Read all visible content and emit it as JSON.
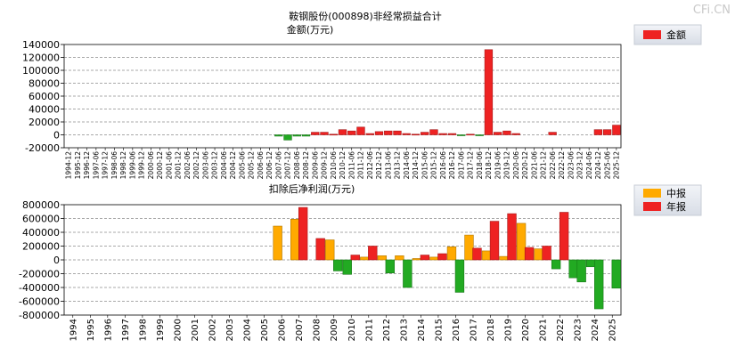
{
  "watermark": "CFi.CN",
  "chart_data": [
    {
      "type": "bar",
      "title": "鞍钢股份(000898)非经常损益合计",
      "ylabel": "金额(万元)",
      "ylim": [
        -20000,
        140000
      ],
      "yticks": [
        140000,
        120000,
        100000,
        80000,
        60000,
        40000,
        20000,
        0,
        -20000
      ],
      "grid": true,
      "legend_position": "top-right",
      "legend": [
        {
          "name": "金额",
          "color": "#ee2222"
        }
      ],
      "categories": [
        "1994-12",
        "1995-12",
        "1996-12",
        "1997-06",
        "1997-12",
        "1998-06",
        "1998-12",
        "1999-06",
        "1999-12",
        "2000-06",
        "2000-12",
        "2001-06",
        "2001-12",
        "2002-06",
        "2002-12",
        "2003-06",
        "2003-12",
        "2004-06",
        "2004-12",
        "2005-06",
        "2005-12",
        "2006-06",
        "2006-12",
        "2007-06",
        "2007-12",
        "2008-06",
        "2008-12",
        "2009-06",
        "2009-12",
        "2010-06",
        "2010-12",
        "2011-06",
        "2011-12",
        "2012-06",
        "2012-12",
        "2013-06",
        "2013-12",
        "2014-06",
        "2014-12",
        "2015-06",
        "2015-12",
        "2016-06",
        "2016-12",
        "2017-06",
        "2017-12",
        "2018-06",
        "2018-12",
        "2019-06",
        "2019-12",
        "2020-06",
        "2020-12",
        "2021-06",
        "2021-12",
        "2022-06",
        "2022-12",
        "2023-06",
        "2023-12",
        "2024-06",
        "2024-12",
        "2025-06",
        "2025-12"
      ],
      "series": [
        {
          "name": "金额",
          "values": [
            0,
            0,
            0,
            0,
            0,
            0,
            0,
            0,
            0,
            0,
            0,
            0,
            0,
            0,
            0,
            0,
            0,
            0,
            0,
            0,
            0,
            0,
            0,
            -2000,
            -8000,
            -2000,
            -2000,
            4000,
            4000,
            1000,
            8000,
            6000,
            12000,
            2000,
            5000,
            6000,
            6000,
            2000,
            1000,
            4000,
            8000,
            2000,
            2000,
            -1000,
            1000,
            -1000,
            132000,
            4000,
            6000,
            2000,
            0,
            0,
            0,
            4000,
            0,
            0,
            0,
            0,
            8000,
            8000,
            15000
          ],
          "colors": [
            "#ee2222",
            "#ee2222",
            "#ee2222",
            "#ee2222",
            "#ee2222",
            "#ee2222",
            "#ee2222",
            "#ee2222",
            "#ee2222",
            "#ee2222",
            "#ee2222",
            "#ee2222",
            "#ee2222",
            "#ee2222",
            "#ee2222",
            "#ee2222",
            "#ee2222",
            "#ee2222",
            "#ee2222",
            "#ee2222",
            "#ee2222",
            "#ee2222",
            "#ee2222",
            "#22aa22",
            "#22aa22",
            "#22aa22",
            "#22aa22",
            "#ee2222",
            "#ee2222",
            "#ee2222",
            "#ee2222",
            "#ee2222",
            "#ee2222",
            "#ee2222",
            "#ee2222",
            "#ee2222",
            "#ee2222",
            "#ee2222",
            "#ee2222",
            "#ee2222",
            "#ee2222",
            "#ee2222",
            "#ee2222",
            "#22aa22",
            "#ee2222",
            "#22aa22",
            "#ee2222",
            "#ee2222",
            "#ee2222",
            "#ee2222",
            "#ee2222",
            "#ee2222",
            "#ee2222",
            "#ee2222",
            "#ee2222",
            "#ee2222",
            "#ee2222",
            "#ee2222",
            "#ee2222",
            "#ee2222",
            "#ee2222"
          ]
        }
      ]
    },
    {
      "type": "bar",
      "title": "扣除后净利润(万元)",
      "ylim": [
        -800000,
        800000
      ],
      "yticks": [
        800000,
        600000,
        400000,
        200000,
        0,
        -200000,
        -400000,
        -600000,
        -800000
      ],
      "grid": true,
      "legend_position": "top-right",
      "legend": [
        {
          "name": "中报",
          "color": "#ffaa00"
        },
        {
          "name": "年报",
          "color": "#ee2222"
        }
      ],
      "categories": [
        "1994",
        "1995",
        "1996",
        "1997",
        "1998",
        "1999",
        "2000",
        "2001",
        "2002",
        "2003",
        "2004",
        "2005",
        "2006",
        "2007",
        "2008",
        "2009",
        "2010",
        "2011",
        "2012",
        "2013",
        "2014",
        "2015",
        "2016",
        "2017",
        "2018",
        "2019",
        "2020",
        "2021",
        "2022",
        "2023",
        "2024",
        "2025"
      ],
      "series": [
        {
          "name": "中报",
          "values": [
            null,
            null,
            null,
            null,
            null,
            null,
            null,
            null,
            null,
            null,
            null,
            null,
            490000,
            590000,
            0,
            290000,
            -210000,
            40000,
            60000,
            60000,
            20000,
            40000,
            190000,
            360000,
            130000,
            50000,
            530000,
            160000,
            -130000,
            -260000,
            -100000,
            null
          ],
          "colors": [
            null,
            null,
            null,
            null,
            null,
            null,
            null,
            null,
            null,
            null,
            null,
            null,
            "#ffaa00",
            "#ffaa00",
            "#ffaa00",
            "#ffaa00",
            "#22aa22",
            "#ffaa00",
            "#ffaa00",
            "#ffaa00",
            "#ffaa00",
            "#ffaa00",
            "#ffaa00",
            "#ffaa00",
            "#ffaa00",
            "#ffaa00",
            "#ffaa00",
            "#ffaa00",
            "#22aa22",
            "#22aa22",
            "#22aa22",
            null
          ]
        },
        {
          "name": "年报",
          "values": [
            null,
            null,
            null,
            null,
            null,
            null,
            null,
            null,
            null,
            null,
            null,
            null,
            null,
            760000,
            310000,
            -160000,
            70000,
            200000,
            -190000,
            -400000,
            70000,
            90000,
            -470000,
            170000,
            560000,
            670000,
            180000,
            200000,
            690000,
            -320000,
            -710000,
            -410000
          ],
          "colors": [
            null,
            null,
            null,
            null,
            null,
            null,
            null,
            null,
            null,
            null,
            null,
            null,
            null,
            "#ee2222",
            "#ee2222",
            "#22aa22",
            "#ee2222",
            "#ee2222",
            "#22aa22",
            "#22aa22",
            "#ee2222",
            "#ee2222",
            "#22aa22",
            "#ee2222",
            "#ee2222",
            "#ee2222",
            "#ee2222",
            "#ee2222",
            "#ee2222",
            "#22aa22",
            "#22aa22",
            "#22aa22"
          ]
        }
      ]
    }
  ]
}
